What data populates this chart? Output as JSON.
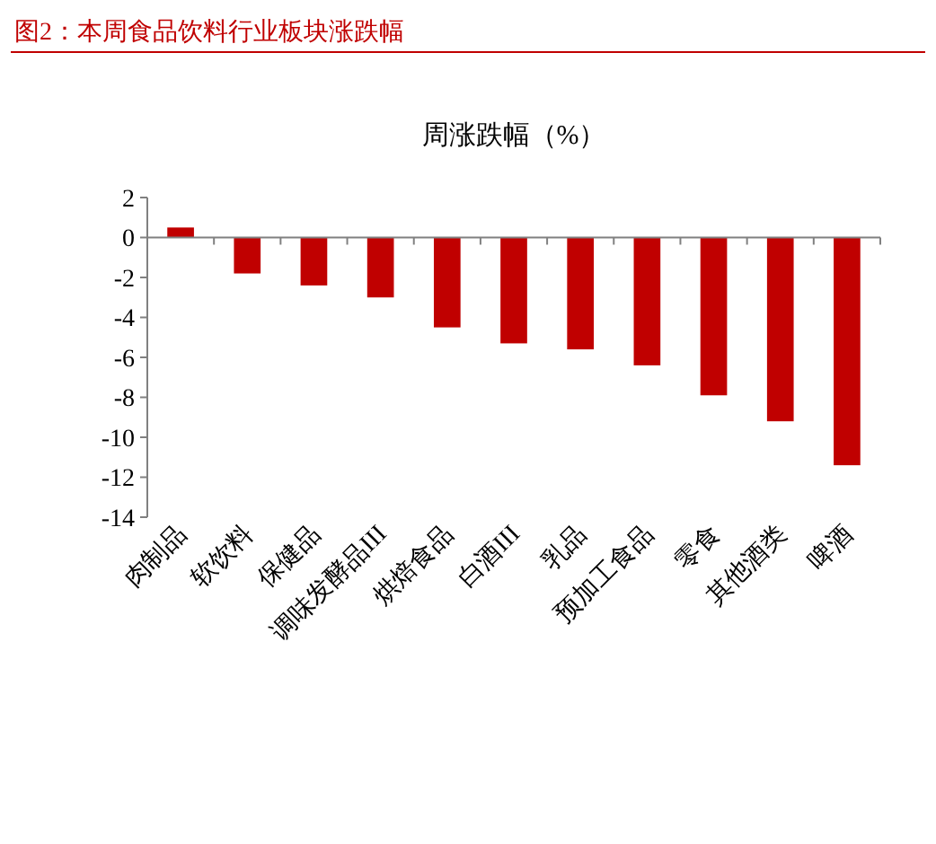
{
  "chart_data": {
    "type": "bar",
    "title": "图2：本周食品饮料行业板块涨跌幅",
    "subtitle": "周涨跌幅（%）",
    "categories": [
      "肉制品",
      "软饮料",
      "保健品",
      "调味发酵品III",
      "烘焙食品",
      "白酒III",
      "乳品",
      "预加工食品",
      "零食",
      "其他酒类",
      "啤酒"
    ],
    "values": [
      0.5,
      -1.8,
      -2.4,
      -3.0,
      -4.5,
      -5.3,
      -5.6,
      -6.4,
      -7.9,
      -9.2,
      -11.4
    ],
    "color": "#c00000",
    "ylim": [
      -14,
      2
    ],
    "yticks": [
      -14,
      -12,
      -10,
      -8,
      -6,
      -4,
      -2,
      0,
      2
    ]
  }
}
